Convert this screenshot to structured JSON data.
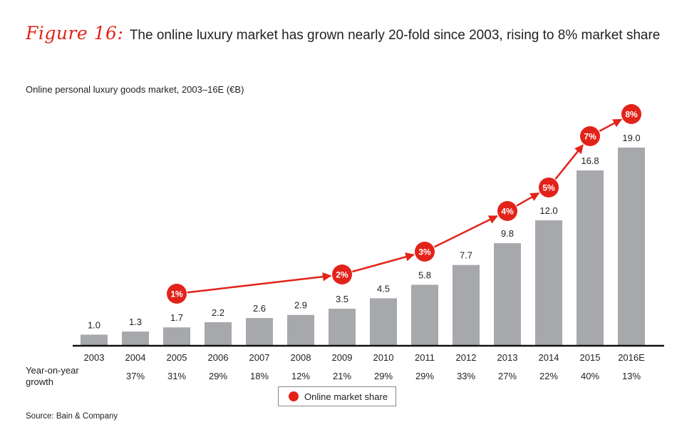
{
  "figure": {
    "label": "Figure 16:",
    "title": "The online luxury market has grown nearly 20-fold since 2003, rising to 8% market share"
  },
  "source": "Source: Bain & Company",
  "colors": {
    "bar": "#a7a8ab",
    "accent": "#e2231a",
    "axis": "#111111"
  },
  "chart_data": {
    "type": "bar",
    "title": "Online personal luxury goods market, 2003–16E (€B)",
    "categories": [
      "2003",
      "2004",
      "2005",
      "2006",
      "2007",
      "2008",
      "2009",
      "2010",
      "2011",
      "2012",
      "2013",
      "2014",
      "2015",
      "2016E"
    ],
    "values": [
      1.0,
      1.3,
      1.7,
      2.2,
      2.6,
      2.9,
      3.5,
      4.5,
      5.8,
      7.7,
      9.8,
      12.0,
      16.8,
      19.0
    ],
    "value_labels": [
      "1.0",
      "1.3",
      "1.7",
      "2.2",
      "2.6",
      "2.9",
      "3.5",
      "4.5",
      "5.8",
      "7.7",
      "9.8",
      "12.0",
      "16.8",
      "19.0"
    ],
    "growth_label": "Year-on-year growth",
    "growth": [
      "",
      "37%",
      "31%",
      "29%",
      "18%",
      "12%",
      "21%",
      "29%",
      "29%",
      "33%",
      "27%",
      "22%",
      "40%",
      "13%"
    ],
    "market_share": {
      "name": "Online market share",
      "points": [
        {
          "category": "2005",
          "label": "1%"
        },
        {
          "category": "2009",
          "label": "2%"
        },
        {
          "category": "2011",
          "label": "3%"
        },
        {
          "category": "2013",
          "label": "4%"
        },
        {
          "category": "2014",
          "label": "5%"
        },
        {
          "category": "2015",
          "label": "7%"
        },
        {
          "category": "2016E",
          "label": "8%"
        }
      ]
    },
    "legend": {
      "position": "bottom-center",
      "entries": [
        "Online market share"
      ]
    },
    "ylim": [
      0,
      20
    ],
    "grid": false
  }
}
